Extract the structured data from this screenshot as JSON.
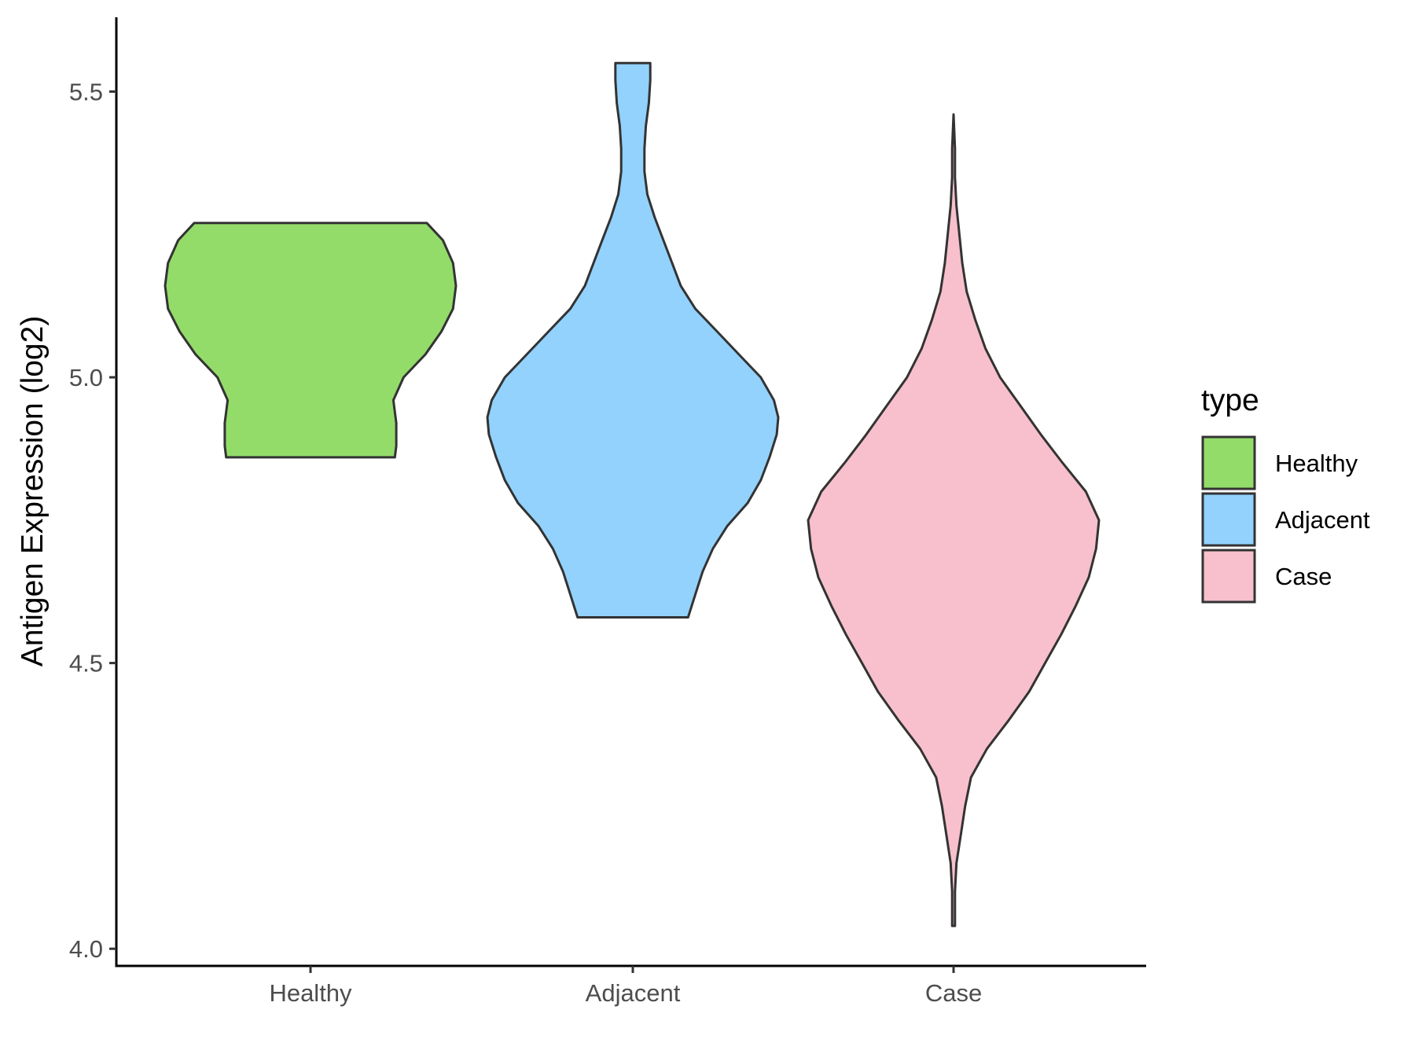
{
  "chart_data": {
    "type": "violin",
    "title": "",
    "xlabel": "",
    "ylabel": "Antigen Expression (log2)",
    "ylim": [
      3.97,
      5.63
    ],
    "yticks": [
      "4.0",
      "4.5",
      "5.0",
      "5.5"
    ],
    "categories": [
      "Healthy",
      "Adjacent",
      "Case"
    ],
    "legend": {
      "title": "type",
      "position": "right",
      "entries": [
        "Healthy",
        "Adjacent",
        "Case"
      ]
    },
    "grid": false,
    "series": [
      {
        "name": "Healthy",
        "color": "#93DC6A",
        "min": 4.86,
        "max": 5.27,
        "density": [
          [
            4.86,
            0.58
          ],
          [
            4.88,
            0.59
          ],
          [
            4.92,
            0.59
          ],
          [
            4.96,
            0.57
          ],
          [
            5.0,
            0.64
          ],
          [
            5.04,
            0.79
          ],
          [
            5.08,
            0.9
          ],
          [
            5.12,
            0.98
          ],
          [
            5.16,
            1.0
          ],
          [
            5.2,
            0.98
          ],
          [
            5.24,
            0.91
          ],
          [
            5.27,
            0.8
          ]
        ]
      },
      {
        "name": "Adjacent",
        "color": "#92D2FD",
        "min": 4.58,
        "max": 5.55,
        "density": [
          [
            4.58,
            0.38
          ],
          [
            4.62,
            0.43
          ],
          [
            4.66,
            0.48
          ],
          [
            4.7,
            0.55
          ],
          [
            4.74,
            0.65
          ],
          [
            4.78,
            0.79
          ],
          [
            4.82,
            0.88
          ],
          [
            4.86,
            0.94
          ],
          [
            4.9,
            0.99
          ],
          [
            4.93,
            1.0
          ],
          [
            4.96,
            0.97
          ],
          [
            5.0,
            0.88
          ],
          [
            5.04,
            0.73
          ],
          [
            5.08,
            0.58
          ],
          [
            5.12,
            0.43
          ],
          [
            5.16,
            0.33
          ],
          [
            5.2,
            0.27
          ],
          [
            5.24,
            0.21
          ],
          [
            5.28,
            0.15
          ],
          [
            5.32,
            0.1
          ],
          [
            5.36,
            0.08
          ],
          [
            5.4,
            0.08
          ],
          [
            5.44,
            0.09
          ],
          [
            5.48,
            0.11
          ],
          [
            5.52,
            0.12
          ],
          [
            5.55,
            0.12
          ]
        ]
      },
      {
        "name": "Case",
        "color": "#F7C0CC",
        "min": 4.04,
        "max": 5.46,
        "density": [
          [
            4.04,
            0.01
          ],
          [
            4.1,
            0.01
          ],
          [
            4.15,
            0.02
          ],
          [
            4.2,
            0.05
          ],
          [
            4.25,
            0.08
          ],
          [
            4.3,
            0.12
          ],
          [
            4.35,
            0.23
          ],
          [
            4.4,
            0.38
          ],
          [
            4.45,
            0.52
          ],
          [
            4.5,
            0.63
          ],
          [
            4.55,
            0.74
          ],
          [
            4.6,
            0.84
          ],
          [
            4.65,
            0.93
          ],
          [
            4.7,
            0.98
          ],
          [
            4.75,
            1.0
          ],
          [
            4.8,
            0.91
          ],
          [
            4.85,
            0.75
          ],
          [
            4.9,
            0.6
          ],
          [
            4.95,
            0.46
          ],
          [
            5.0,
            0.32
          ],
          [
            5.05,
            0.22
          ],
          [
            5.1,
            0.15
          ],
          [
            5.15,
            0.09
          ],
          [
            5.2,
            0.06
          ],
          [
            5.25,
            0.04
          ],
          [
            5.3,
            0.02
          ],
          [
            5.35,
            0.01
          ],
          [
            5.4,
            0.01
          ],
          [
            5.46,
            0.0
          ]
        ]
      }
    ]
  }
}
